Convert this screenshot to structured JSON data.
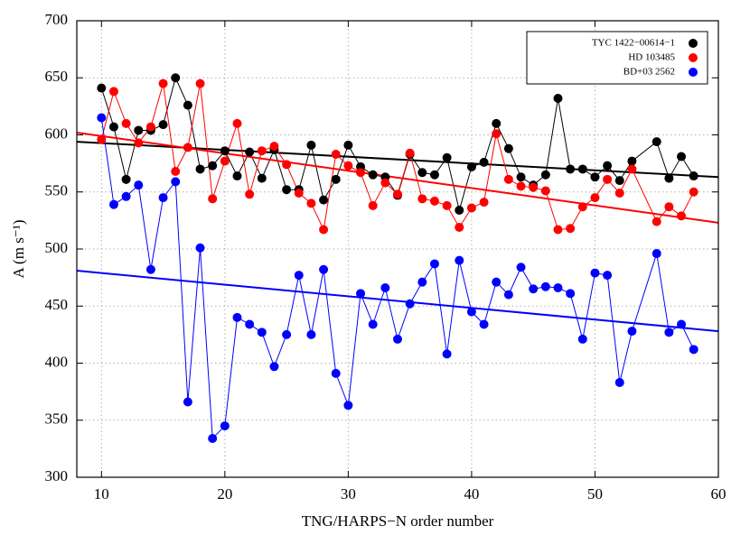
{
  "chart_data": {
    "type": "line",
    "xlabel": "TNG/HARPS−N order number",
    "ylabel": "A (m s⁻¹)",
    "xlim": [
      8,
      60
    ],
    "xticks": [
      10,
      20,
      30,
      40,
      50,
      60
    ],
    "ylim": [
      300,
      700
    ],
    "yticks": [
      300,
      350,
      400,
      450,
      500,
      550,
      600,
      650,
      700
    ],
    "grid": true,
    "legend": "upper right",
    "x": [
      10,
      11,
      12,
      13,
      14,
      15,
      16,
      17,
      18,
      19,
      20,
      21,
      22,
      23,
      24,
      25,
      26,
      27,
      28,
      29,
      30,
      31,
      32,
      33,
      34,
      35,
      36,
      37,
      38,
      39,
      40,
      41,
      42,
      43,
      44,
      45,
      46,
      47,
      48,
      49,
      50,
      51,
      52,
      53,
      55,
      56,
      57,
      58
    ],
    "series": [
      {
        "name": "TYC 1422−00614−1",
        "color": "#000000",
        "values": [
          641,
          607,
          561,
          604,
          604,
          609,
          650,
          626,
          570,
          573,
          586,
          564,
          585,
          562,
          587,
          552,
          552,
          591,
          543,
          561,
          591,
          572,
          565,
          563,
          547,
          583,
          567,
          565,
          580,
          534,
          572,
          576,
          610,
          588,
          563,
          556,
          565,
          632,
          570,
          570,
          563,
          573,
          560,
          577,
          594,
          562,
          581,
          564
        ],
        "fit": {
          "x": [
            8,
            60
          ],
          "values": [
            594,
            563
          ]
        }
      },
      {
        "name": "HD 103485",
        "color": "#ff0000",
        "values": [
          596,
          638,
          610,
          593,
          607,
          645,
          568,
          589,
          645,
          544,
          577,
          610,
          548,
          586,
          590,
          574,
          549,
          540,
          517,
          583,
          573,
          567,
          538,
          558,
          548,
          584,
          544,
          542,
          538,
          519,
          536,
          541,
          601,
          561,
          555,
          554,
          551,
          517,
          518,
          537,
          545,
          561,
          549,
          570,
          524,
          537,
          529,
          550
        ],
        "fit": {
          "x": [
            8,
            60
          ],
          "values": [
            602,
            523
          ]
        }
      },
      {
        "name": "BD+03 2562",
        "color": "#0000ff",
        "values": [
          615,
          539,
          546,
          556,
          482,
          545,
          559,
          366,
          501,
          334,
          345,
          440,
          434,
          427,
          397,
          425,
          477,
          425,
          482,
          391,
          363,
          461,
          434,
          466,
          421,
          452,
          471,
          487,
          408,
          490,
          445,
          434,
          471,
          460,
          484,
          465,
          467,
          466,
          461,
          421,
          479,
          477,
          383,
          428,
          496,
          427,
          434,
          412
        ],
        "fit": {
          "x": [
            8,
            60
          ],
          "values": [
            481,
            428
          ]
        }
      }
    ]
  }
}
